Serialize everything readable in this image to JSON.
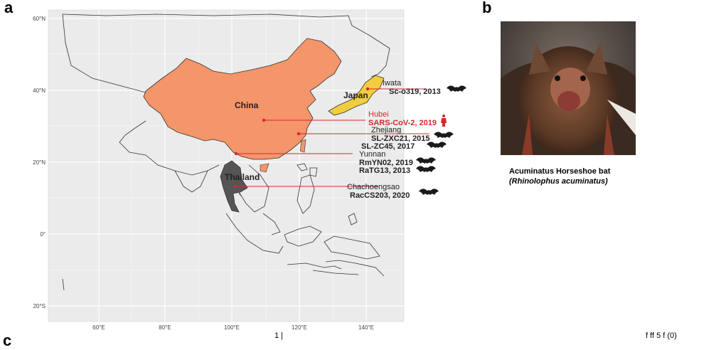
{
  "panels": {
    "a": "a",
    "b": "b",
    "c": "c"
  },
  "map": {
    "lat_labels": [
      "60°N",
      "40°N",
      "20°N",
      "0°",
      "20°S"
    ],
    "lon_labels": [
      "60°E",
      "80°E",
      "100°E",
      "120°E",
      "140°E"
    ],
    "countries": {
      "china": {
        "label": "China",
        "color": "#f4956a"
      },
      "japan": {
        "label": "Japan",
        "color": "#f2cd3f"
      },
      "thailand": {
        "label": "Thailand",
        "color": "#555555"
      }
    },
    "sites": [
      {
        "id": "iwata",
        "place": "Iwata",
        "strains": [
          "Sc-o319, 2013"
        ],
        "host": "bat",
        "color": "#222222"
      },
      {
        "id": "hubei",
        "place": "Hubei",
        "strains": [
          "SARS-CoV-2, 2019"
        ],
        "host": "human",
        "color": "#d7282f"
      },
      {
        "id": "zhejiang",
        "place": "Zhejiang",
        "strains": [
          "SL-ZXC21, 2015",
          "SL-ZC45, 2017"
        ],
        "host": "bat",
        "color": "#222222"
      },
      {
        "id": "yunnan",
        "place": "Yunnan",
        "strains": [
          "RmYN02, 2019",
          "RaTG13, 2013"
        ],
        "host": "bat",
        "color": "#222222"
      },
      {
        "id": "chachoengsao",
        "place": "Chachoengsao",
        "strains": [
          "RacCS203, 2020"
        ],
        "host": "bat",
        "color": "#222222"
      }
    ],
    "line_color": "#d7282f"
  },
  "photo": {
    "caption_common": "Acuminatus Horseshoe bat",
    "caption_latin": "(Rhinolophus acuminatus)"
  },
  "bottom_strip": {
    "left": "1 |",
    "right": "f ff 5 f (0)"
  }
}
